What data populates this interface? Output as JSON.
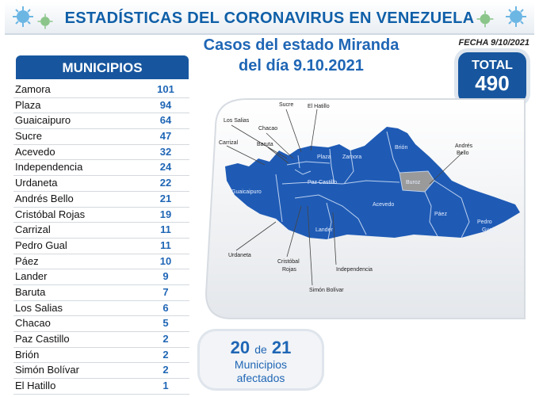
{
  "header": {
    "title": "ESTADÍSTICAS DEL CORONAVIRUS EN VENEZUELA",
    "subtitle_line1": "Casos del estado Miranda",
    "subtitle_line2": "del día 9.10.2021",
    "fecha": "FECHA 9/10/2021"
  },
  "total": {
    "label": "TOTAL",
    "value": "490"
  },
  "municipios": {
    "header": "MUNICIPIOS",
    "rows": [
      {
        "name": "Zamora",
        "value": "101"
      },
      {
        "name": "Plaza",
        "value": "94"
      },
      {
        "name": "Guaicaipuro",
        "value": "64"
      },
      {
        "name": "Sucre",
        "value": "47"
      },
      {
        "name": "Acevedo",
        "value": "32"
      },
      {
        "name": "Independencia",
        "value": "24"
      },
      {
        "name": "Urdaneta",
        "value": "22"
      },
      {
        "name": "Andrés Bello",
        "value": "21"
      },
      {
        "name": "Cristóbal Rojas",
        "value": "19"
      },
      {
        "name": "Carrizal",
        "value": "11"
      },
      {
        "name": "Pedro Gual",
        "value": "11"
      },
      {
        "name": "Páez",
        "value": "10"
      },
      {
        "name": "Lander",
        "value": "9"
      },
      {
        "name": "Baruta",
        "value": "7"
      },
      {
        "name": "Los Salias",
        "value": "6"
      },
      {
        "name": "Chacao",
        "value": "5"
      },
      {
        "name": "Paz Castillo",
        "value": "2"
      },
      {
        "name": "Brión",
        "value": "2"
      },
      {
        "name": "Simón Bolívar",
        "value": "2"
      },
      {
        "name": "El Hatillo",
        "value": "1"
      }
    ]
  },
  "map": {
    "inner_labels": {
      "plaza": "Plaza",
      "zamora": "Zamora",
      "brion": "Brión",
      "buroz": "Buroz",
      "guaicaipuro": "Guaicaipuro",
      "paz_castillo": "Paz Castillo",
      "acevedo": "Acevedo",
      "paez": "Páez",
      "pedro": "Pedro",
      "gual": "Gual",
      "lander": "Lander"
    },
    "callout_labels": {
      "sucre": "Sucre",
      "el_hatillo": "El Hatillo",
      "los_salias": "Los Salias",
      "chacao": "Chacao",
      "carrizal": "Carrizal",
      "baruta": "Baruta",
      "andres": "Andrés",
      "bello": "Bello",
      "urdaneta": "Urdaneta",
      "cristobal": "Cristóbal",
      "rojas": "Rojas",
      "independencia": "Independencia",
      "simon_bolivar": "Simón Bolívar"
    },
    "colors": {
      "region": "#1f5bb5",
      "buroz": "#9a9a9a",
      "border": "#bcd0ef"
    }
  },
  "afectados": {
    "count": "20",
    "de": "de",
    "total": "21",
    "line1": "Municipios",
    "line2": "afectados"
  },
  "icons": [
    "virus-icon"
  ]
}
